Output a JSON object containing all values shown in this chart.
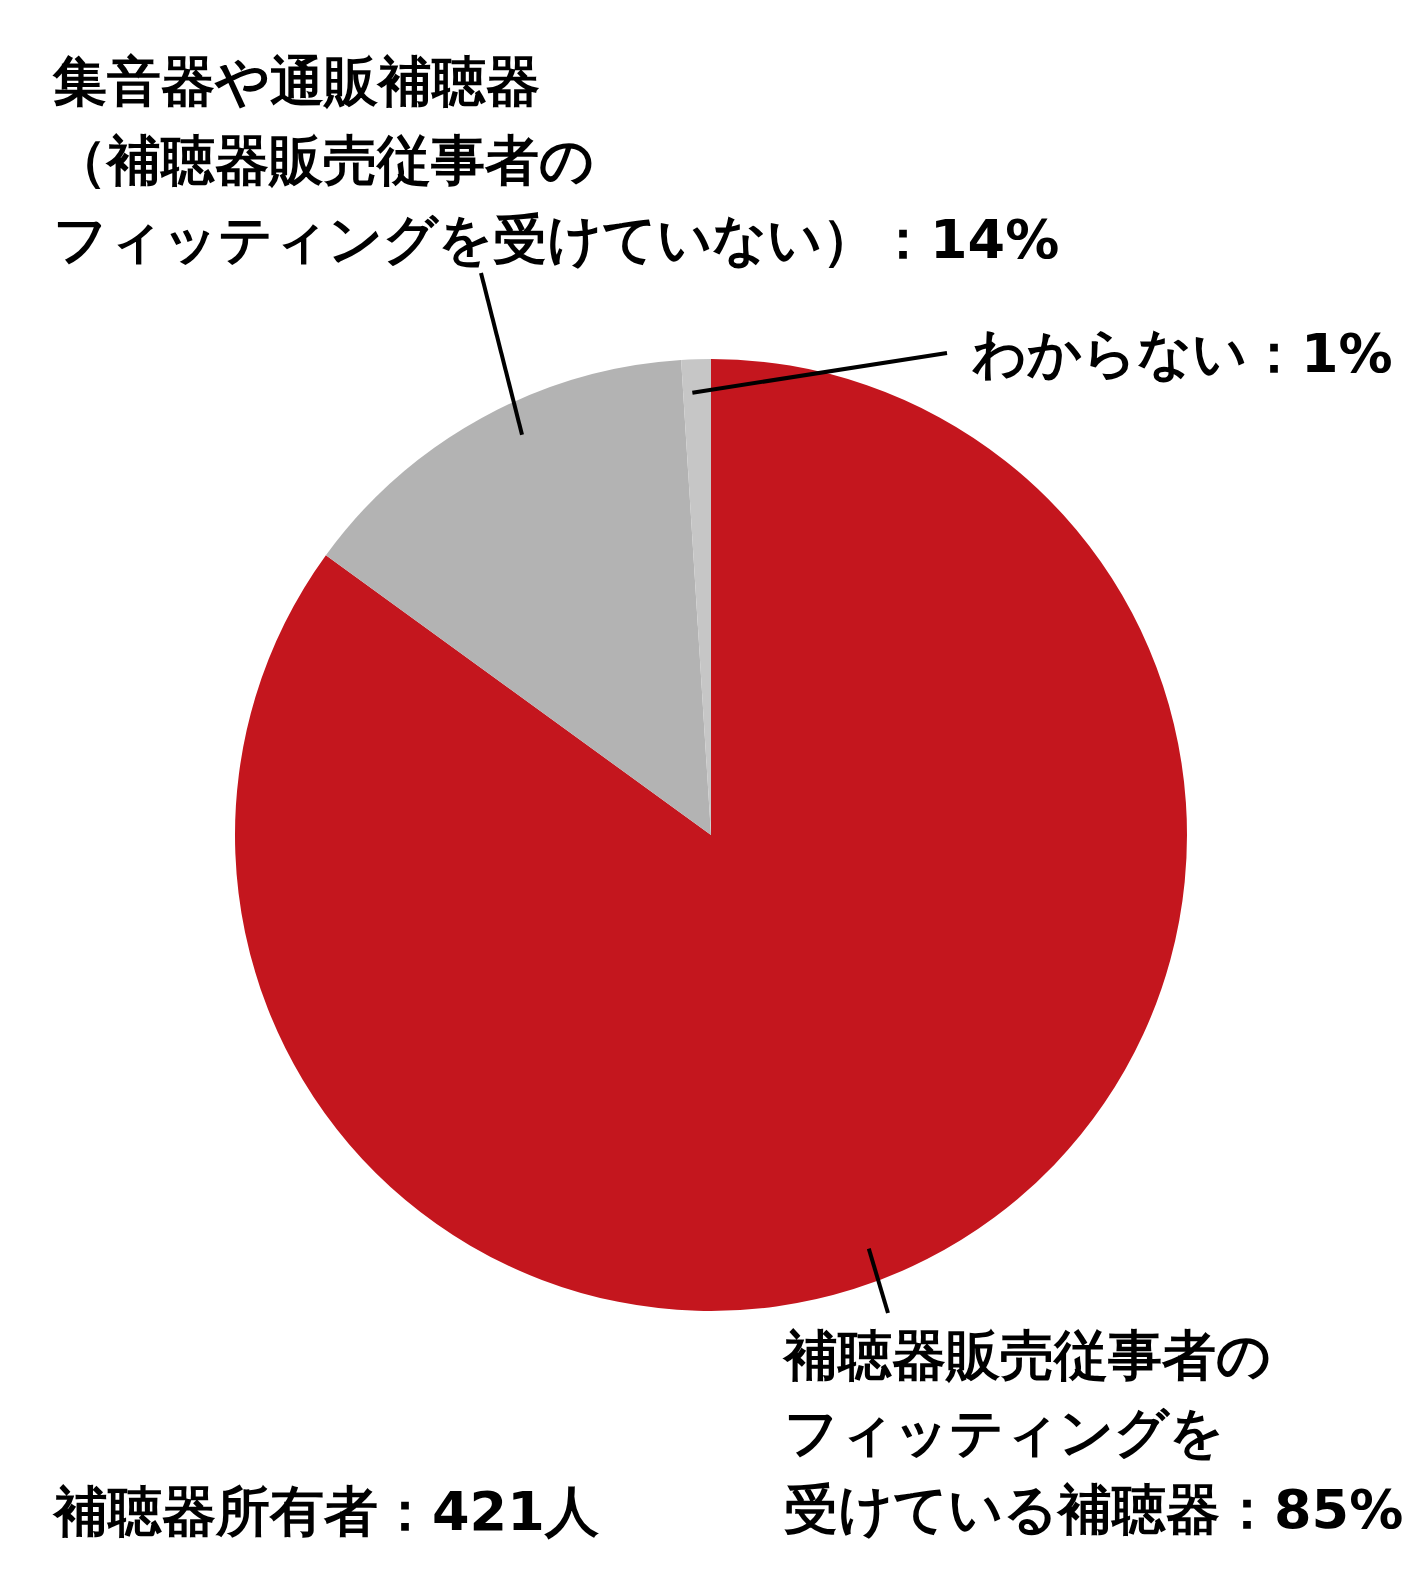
{
  "chart_data": {
    "type": "pie",
    "categories": [
      "補聴器販売従事者のフィッティングを受けている補聴器",
      "集音器や通販補聴器（補聴器販売従事者のフィッティングを受けていない）",
      "わからない"
    ],
    "values": [
      85,
      14,
      1
    ],
    "colors": [
      "#c4161e",
      "#b3b3b3",
      "#c6c6c6"
    ],
    "value_labels": [
      "：85%",
      "：14%",
      "：1%"
    ],
    "annotations": [
      "補聴器所有者：421人"
    ],
    "legend": false
  }
}
